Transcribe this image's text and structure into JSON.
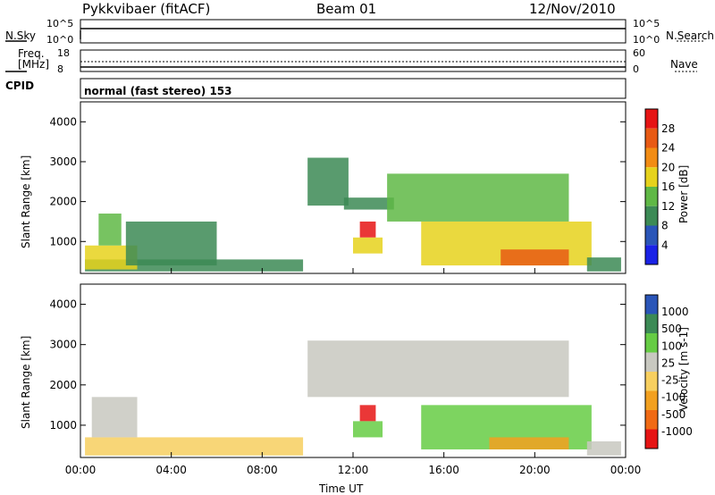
{
  "header": {
    "station": "Pykkvibaer (fitACF)",
    "beam": "Beam 01",
    "date": "12/Nov/2010"
  },
  "panels": {
    "nsky_label": "N.Sky",
    "nsearch_label": "N.Search",
    "nsky_ticks": [
      "10^5",
      "10^0"
    ],
    "nsearch_ticks": [
      "10^5",
      "10^0"
    ],
    "freq_label_1": "Freq.",
    "freq_label_2": "[MHz]",
    "freq_ticks": [
      "18",
      "8"
    ],
    "nave_label": "Nave",
    "nave_ticks": [
      "60",
      "0"
    ],
    "cpid_label": "CPID",
    "cpid_text": "normal (fast stereo) 153"
  },
  "colors": {
    "power_scale": [
      "#1a22e6",
      "#2a55b8",
      "#3c8a55",
      "#5fb845",
      "#e6d21c",
      "#f28c14",
      "#e85a14",
      "#e61414"
    ],
    "velocity_scale": [
      "#e61414",
      "#f06a14",
      "#f2a020",
      "#f7cf5f",
      "#c8c8c0",
      "#66cc44",
      "#3c8a55",
      "#2a55b8"
    ]
  },
  "chart_data": [
    {
      "type": "heatmap",
      "quantity": "Power",
      "xlabel": "Time UT",
      "ylabel": "Slant Range [km]",
      "colorbar_label": "Power [dB]",
      "colorbar_ticks": [
        "28",
        "24",
        "20",
        "16",
        "12",
        "8",
        "4"
      ],
      "x_ticks": [
        "00:00",
        "04:00",
        "08:00",
        "12:00",
        "16:00",
        "20:00",
        "00:00"
      ],
      "y_ticks": [
        "4000",
        "3000",
        "2000",
        "1000"
      ],
      "xlim": [
        0,
        24
      ],
      "ylim": [
        200,
        4500
      ],
      "features": [
        {
          "t0": 0.2,
          "t1": 9.8,
          "r0": 250,
          "r1": 550,
          "level": 0.35
        },
        {
          "t0": 0.2,
          "t1": 2.5,
          "r0": 300,
          "r1": 900,
          "level": 0.55
        },
        {
          "t0": 0.8,
          "t1": 1.8,
          "r0": 900,
          "r1": 1700,
          "level": 0.45
        },
        {
          "t0": 2.0,
          "t1": 6.0,
          "r0": 400,
          "r1": 1500,
          "level": 0.3
        },
        {
          "t0": 10.0,
          "t1": 11.8,
          "r0": 1900,
          "r1": 3100,
          "level": 0.3
        },
        {
          "t0": 11.6,
          "t1": 13.8,
          "r0": 1800,
          "r1": 2100,
          "level": 0.3
        },
        {
          "t0": 12.3,
          "t1": 13.0,
          "r0": 1100,
          "r1": 1500,
          "level": 0.95
        },
        {
          "t0": 12.0,
          "t1": 13.3,
          "r0": 700,
          "r1": 1100,
          "level": 0.55
        },
        {
          "t0": 13.5,
          "t1": 21.5,
          "r0": 1500,
          "r1": 2700,
          "level": 0.4
        },
        {
          "t0": 15.0,
          "t1": 22.5,
          "r0": 400,
          "r1": 1500,
          "level": 0.55
        },
        {
          "t0": 18.5,
          "t1": 21.5,
          "r0": 400,
          "r1": 800,
          "level": 0.8
        },
        {
          "t0": 22.3,
          "t1": 23.8,
          "r0": 250,
          "r1": 600,
          "level": 0.35
        }
      ]
    },
    {
      "type": "heatmap",
      "quantity": "Velocity",
      "xlabel": "Time UT",
      "ylabel": "Slant Range [km]",
      "colorbar_label": "Velocity [m s-1]",
      "colorbar_ticks": [
        "1000",
        "500",
        "100",
        "25",
        "-25",
        "-100",
        "-500",
        "-1000"
      ],
      "x_ticks": [
        "00:00",
        "04:00",
        "08:00",
        "12:00",
        "16:00",
        "20:00",
        "00:00"
      ],
      "y_ticks": [
        "4000",
        "3000",
        "2000",
        "1000"
      ],
      "xlim": [
        0,
        24
      ],
      "ylim": [
        200,
        4500
      ],
      "features": [
        {
          "t0": 0.2,
          "t1": 9.8,
          "r0": 250,
          "r1": 700,
          "level": 0.45
        },
        {
          "t0": 0.5,
          "t1": 2.5,
          "r0": 700,
          "r1": 1700,
          "level": 0.55
        },
        {
          "t0": 10.0,
          "t1": 21.5,
          "r0": 1700,
          "r1": 3100,
          "level": 0.5
        },
        {
          "t0": 12.3,
          "t1": 13.0,
          "r0": 1100,
          "r1": 1500,
          "level": 0.05
        },
        {
          "t0": 12.0,
          "t1": 13.3,
          "r0": 700,
          "r1": 1100,
          "level": 0.7
        },
        {
          "t0": 15.0,
          "t1": 22.5,
          "r0": 400,
          "r1": 1500,
          "level": 0.65
        },
        {
          "t0": 18.0,
          "t1": 21.5,
          "r0": 400,
          "r1": 700,
          "level": 0.3
        },
        {
          "t0": 22.3,
          "t1": 23.8,
          "r0": 250,
          "r1": 600,
          "level": 0.5
        }
      ]
    }
  ]
}
